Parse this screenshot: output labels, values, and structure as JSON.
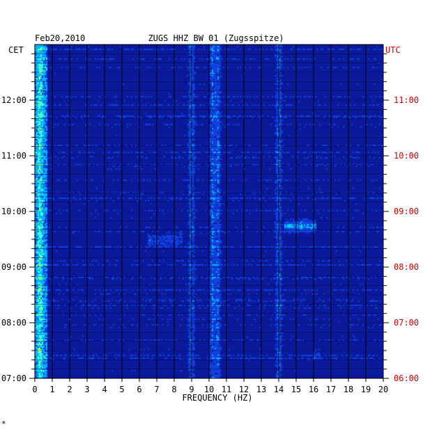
{
  "chart_data": {
    "type": "heatmap",
    "title_left": "Feb20,2010",
    "title_center": "ZUGS HHZ BW 01 (Zugsspitze)",
    "xlabel": "FREQUENCY (HZ)",
    "xlim": [
      0,
      20
    ],
    "x_ticks": [
      "0",
      "1",
      "2",
      "3",
      "4",
      "5",
      "6",
      "7",
      "8",
      "9",
      "10",
      "11",
      "12",
      "13",
      "14",
      "15",
      "16",
      "17",
      "18",
      "19",
      "20"
    ],
    "left_axis_label": "CET",
    "right_axis_label": "UTC",
    "left_time_ticks": [
      "12:00",
      "11:00",
      "10:00",
      "09:00",
      "08:00",
      "07:00"
    ],
    "right_time_ticks": [
      "11:00",
      "10:00",
      "09:00",
      "08:00",
      "07:00",
      "06:00"
    ],
    "time_range_cet": [
      "07:00",
      "12:50"
    ],
    "colors": {
      "background": "#0a1fb8",
      "grid": "#000000",
      "utc_label": "#cc0000",
      "scale": [
        "#0a1a9a",
        "#1040e0",
        "#00b4ff",
        "#40ffd0",
        "#ffff00",
        "#ff8000",
        "#ff0000"
      ]
    },
    "persistent_bands_hz": [
      0.3,
      9.0,
      10.2,
      10.5,
      14.0
    ],
    "events": [
      {
        "freq_hz": [
          14.3,
          16.2
        ],
        "time_cet": "09:45",
        "intensity": "high"
      },
      {
        "freq_hz": [
          6.5,
          8.5
        ],
        "time_cet": "09:30",
        "intensity": "medium"
      },
      {
        "freq_hz": [
          16.0,
          16.4
        ],
        "time_cet": "07:25",
        "intensity": "medium"
      }
    ],
    "footer_mark": "*"
  }
}
